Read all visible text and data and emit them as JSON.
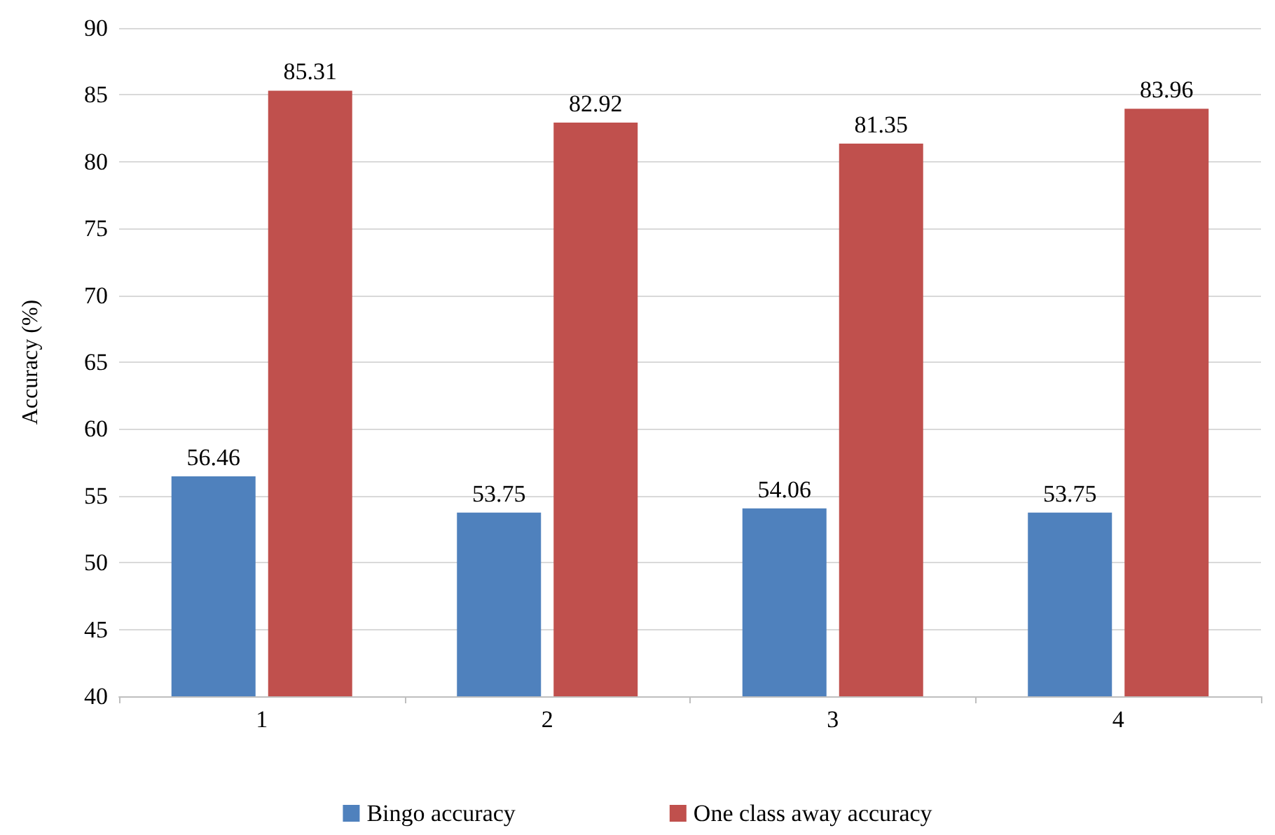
{
  "chart_data": {
    "type": "bar",
    "ylabel": "Accuracy (%)",
    "categories": [
      "1",
      "2",
      "3",
      "4"
    ],
    "series": [
      {
        "name": "Bingo accuracy",
        "color": "#4f81bd",
        "values": [
          56.46,
          53.75,
          54.06,
          53.75
        ]
      },
      {
        "name": "One class away accuracy",
        "color": "#c0504d",
        "values": [
          85.31,
          82.92,
          81.35,
          83.96
        ]
      }
    ],
    "ylim": [
      40,
      90
    ],
    "yticks": [
      40,
      45,
      50,
      55,
      60,
      65,
      70,
      75,
      80,
      85,
      90
    ],
    "grid": "y",
    "legend": "bottom",
    "data_labels": true
  }
}
